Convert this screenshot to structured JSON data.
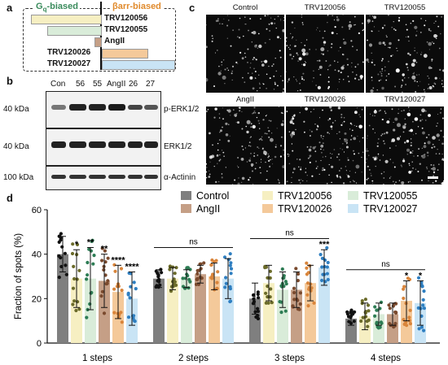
{
  "panel_a": {
    "letter": "a",
    "g_biased": "Gq-biased",
    "barr_biased": "βarr-biased",
    "ligands": [
      {
        "name": "TRV120056",
        "fill": "#f6efc2"
      },
      {
        "name": "TRV120055",
        "fill": "#d9ecd9"
      },
      {
        "name": "AngII",
        "fill": "#c59f86"
      },
      {
        "name": "TRV120026",
        "fill": "#f4c99a"
      },
      {
        "name": "TRV120027",
        "fill": "#c9e4f5"
      }
    ]
  },
  "panel_b": {
    "letter": "b",
    "lanes": [
      "Con",
      "56",
      "55",
      "AngII",
      "26",
      "27"
    ],
    "blots": [
      {
        "mw": "40 kDa",
        "target": "p-ERK1/2"
      },
      {
        "mw": "40 kDa",
        "target": "ERK1/2"
      },
      {
        "mw": "100 kDa",
        "target": "α-Actinin"
      }
    ]
  },
  "panel_c": {
    "letter": "c",
    "images": [
      "Control",
      "TRV120056",
      "TRV120055",
      "AngII",
      "TRV120026",
      "TRV120027"
    ]
  },
  "panel_d": {
    "letter": "d",
    "chart_data": {
      "type": "bar",
      "ylabel": "Fraction of spots (%)",
      "ylim": [
        0,
        60
      ],
      "yticks": [
        0,
        20,
        40,
        60
      ],
      "categories": [
        "1 steps",
        "2 steps",
        "3 steps",
        "4 steps"
      ],
      "legend_placement": "top-right",
      "series": [
        {
          "name": "Control",
          "color": "#7f7f7f",
          "dot": "#111111",
          "values": [
            40,
            29,
            20,
            11
          ],
          "sd": [
            8,
            4,
            7,
            3
          ]
        },
        {
          "name": "TRV120056",
          "color": "#f6efc2",
          "dot": "#6b6b2a",
          "values": [
            29,
            29,
            27,
            12
          ],
          "sd": [
            13,
            5,
            8,
            6
          ]
        },
        {
          "name": "TRV120055",
          "color": "#d9ecd9",
          "dot": "#2e7d55",
          "values": [
            29,
            29,
            24,
            13
          ],
          "sd": [
            14,
            4,
            8,
            5
          ]
        },
        {
          "name": "AngII",
          "color": "#c59f86",
          "dot": "#7a4a2e",
          "values": [
            28,
            31,
            24,
            13
          ],
          "sd": [
            12,
            4,
            8,
            5
          ]
        },
        {
          "name": "TRV120026",
          "color": "#f4c99a",
          "dot": "#d9853b",
          "values": [
            23,
            30,
            27,
            19
          ],
          "sd": [
            12,
            6,
            8,
            9
          ]
        },
        {
          "name": "TRV120027",
          "color": "#c9e4f5",
          "dot": "#2f7fc1",
          "values": [
            20,
            29,
            34,
            18
          ],
          "sd": [
            12,
            9,
            8,
            10
          ]
        }
      ],
      "significance": [
        [
          "",
          "",
          "",
          ""
        ],
        [
          "*",
          "",
          "",
          ""
        ],
        [
          "**",
          "",
          "",
          ""
        ],
        [
          "**",
          "",
          "",
          ""
        ],
        [
          "****",
          "",
          "",
          "*"
        ],
        [
          "****",
          "",
          "***",
          "*"
        ]
      ],
      "ns_brackets": [
        {
          "group": 1,
          "label": "ns"
        },
        {
          "group": 2,
          "label": "ns"
        },
        {
          "group": 3,
          "label": "ns"
        }
      ]
    }
  }
}
